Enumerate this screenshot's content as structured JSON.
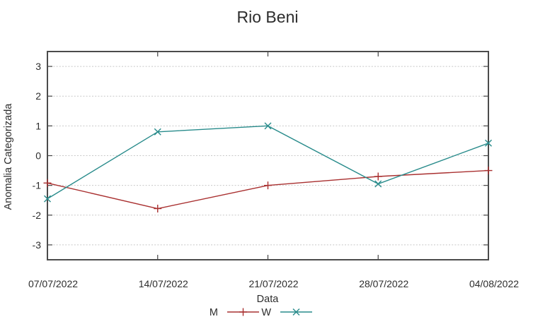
{
  "chart_data": {
    "type": "line",
    "title": "Rio Beni",
    "xlabel": "Data",
    "ylabel": "Anomalia Categorizada",
    "categories": [
      "07/07/2022",
      "14/07/2022",
      "21/07/2022",
      "28/07/2022",
      "04/08/2022"
    ],
    "series": [
      {
        "name": "M",
        "color": "#a93030",
        "marker": "plus",
        "values": [
          -0.92,
          -1.78,
          -1.0,
          -0.7,
          -0.5
        ]
      },
      {
        "name": "W",
        "color": "#288b8b",
        "marker": "cross",
        "values": [
          -1.45,
          0.8,
          1.0,
          -0.95,
          0.42
        ]
      }
    ],
    "ylim": [
      -3.5,
      3.5
    ],
    "yticks": [
      -3,
      -2,
      -1,
      0,
      1,
      2,
      3
    ],
    "grid": "horizontal-dotted",
    "legend_position": "bottom-center"
  },
  "colors": {
    "background": "#ffffff",
    "grid": "#c8c8c8",
    "border": "#4b4b4b",
    "text": "#2d2d2d",
    "series_m": "#a93030",
    "series_w": "#288b8b"
  }
}
